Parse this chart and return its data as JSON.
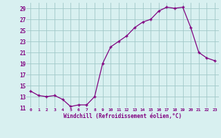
{
  "x": [
    0,
    1,
    2,
    3,
    4,
    5,
    6,
    7,
    8,
    9,
    10,
    11,
    12,
    13,
    14,
    15,
    16,
    17,
    18,
    19,
    20,
    21,
    22,
    23
  ],
  "y": [
    14.0,
    13.2,
    13.0,
    13.2,
    12.5,
    11.2,
    11.5,
    11.5,
    13.0,
    19.0,
    22.0,
    23.0,
    24.0,
    25.5,
    26.5,
    27.0,
    28.5,
    29.2,
    29.0,
    29.2,
    25.5,
    21.0,
    20.0,
    19.5
  ],
  "line_color": "#800080",
  "marker": "+",
  "bg_color": "#d8f0f0",
  "grid_color": "#a0c8c8",
  "xlabel": "Windchill (Refroidissement éolien,°C)",
  "xlabel_color": "#800080",
  "tick_color": "#800080",
  "ylim": [
    11,
    30
  ],
  "yticks": [
    11,
    13,
    15,
    17,
    19,
    21,
    23,
    25,
    27,
    29
  ],
  "xticks": [
    0,
    1,
    2,
    3,
    4,
    5,
    6,
    7,
    8,
    9,
    10,
    11,
    12,
    13,
    14,
    15,
    16,
    17,
    18,
    19,
    20,
    21,
    22,
    23
  ]
}
